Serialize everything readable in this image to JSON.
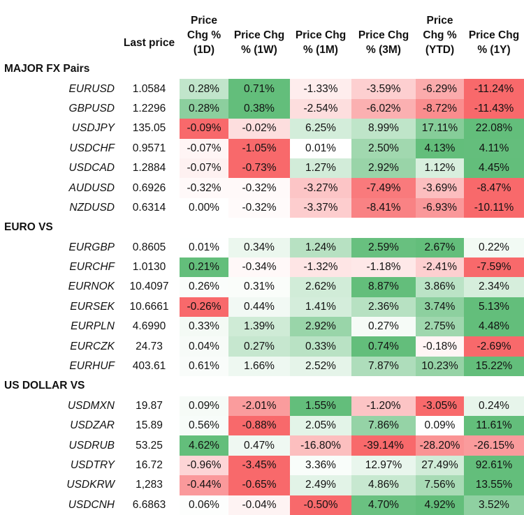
{
  "header": {
    "last_price": "Last price",
    "chg_1d": "Price Chg % (1D)",
    "chg_1w": "Price Chg % (1W)",
    "chg_1m": "Price Chg % (1M)",
    "chg_3m": "Price Chg % (3M)",
    "chg_ytd": "Price Chg % (YTD)",
    "chg_1y": "Price Chg % (1Y)"
  },
  "colors": {
    "positive": "#63be7b",
    "negative": "#f8696b",
    "neutral": "#ffffff"
  },
  "chart_data": {
    "type": "table",
    "columns": [
      "Last price",
      "Price Chg % (1D)",
      "Price Chg % (1W)",
      "Price Chg % (1M)",
      "Price Chg % (3M)",
      "Price Chg % (YTD)",
      "Price Chg % (1Y)"
    ],
    "sections": [
      {
        "name": "MAJOR FX Pairs",
        "rows": [
          {
            "pair": "EURUSD",
            "last": "1.0584",
            "changes": [
              "0.28%",
              "0.71%",
              "-1.33%",
              "-3.59%",
              "-6.29%",
              "-11.24%"
            ]
          },
          {
            "pair": "GBPUSD",
            "last": "1.2296",
            "changes": [
              "0.28%",
              "0.38%",
              "-2.54%",
              "-6.02%",
              "-8.72%",
              "-11.43%"
            ]
          },
          {
            "pair": "USDJPY",
            "last": "135.05",
            "changes": [
              "-0.09%",
              "-0.02%",
              "6.25%",
              "8.99%",
              "17.11%",
              "22.08%"
            ]
          },
          {
            "pair": "USDCHF",
            "last": "0.9571",
            "changes": [
              "-0.07%",
              "-1.05%",
              "0.01%",
              "2.50%",
              "4.13%",
              "4.11%"
            ]
          },
          {
            "pair": "USDCAD",
            "last": "1.2884",
            "changes": [
              "-0.07%",
              "-0.73%",
              "1.27%",
              "2.92%",
              "1.12%",
              "4.45%"
            ]
          },
          {
            "pair": "AUDUSD",
            "last": "0.6926",
            "changes": [
              "-0.32%",
              "-0.32%",
              "-3.27%",
              "-7.49%",
              "-3.69%",
              "-8.47%"
            ]
          },
          {
            "pair": "NZDUSD",
            "last": "0.6314",
            "changes": [
              "0.00%",
              "-0.32%",
              "-3.37%",
              "-8.41%",
              "-6.93%",
              "-10.11%"
            ]
          }
        ]
      },
      {
        "name": "EURO VS",
        "rows": [
          {
            "pair": "EURGBP",
            "last": "0.8605",
            "changes": [
              "0.01%",
              "0.34%",
              "1.24%",
              "2.59%",
              "2.67%",
              "0.22%"
            ]
          },
          {
            "pair": "EURCHF",
            "last": "1.0130",
            "changes": [
              "0.21%",
              "-0.34%",
              "-1.32%",
              "-1.18%",
              "-2.41%",
              "-7.59%"
            ]
          },
          {
            "pair": "EURNOK",
            "last": "10.4097",
            "changes": [
              "0.26%",
              "0.31%",
              "2.62%",
              "8.87%",
              "3.86%",
              "2.34%"
            ]
          },
          {
            "pair": "EURSEK",
            "last": "10.6661",
            "changes": [
              "-0.26%",
              "0.44%",
              "1.41%",
              "2.36%",
              "3.74%",
              "5.13%"
            ]
          },
          {
            "pair": "EURPLN",
            "last": "4.6990",
            "changes": [
              "0.33%",
              "1.39%",
              "2.92%",
              "0.27%",
              "2.75%",
              "4.48%"
            ]
          },
          {
            "pair": "EURCZK",
            "last": "24.73",
            "changes": [
              "0.04%",
              "0.27%",
              "0.33%",
              "0.74%",
              "-0.18%",
              "-2.69%"
            ]
          },
          {
            "pair": "EURHUF",
            "last": "403.61",
            "changes": [
              "0.61%",
              "1.66%",
              "2.52%",
              "7.87%",
              "10.23%",
              "15.22%"
            ]
          }
        ]
      },
      {
        "name": "US DOLLAR VS",
        "rows": [
          {
            "pair": "USDMXN",
            "last": "19.87",
            "changes": [
              "0.09%",
              "-2.01%",
              "1.55%",
              "-1.20%",
              "-3.05%",
              "0.24%"
            ]
          },
          {
            "pair": "USDZAR",
            "last": "15.89",
            "changes": [
              "0.56%",
              "-0.88%",
              "2.05%",
              "7.86%",
              "0.09%",
              "11.61%"
            ]
          },
          {
            "pair": "USDRUB",
            "last": "53.25",
            "changes": [
              "4.62%",
              "0.47%",
              "-16.80%",
              "-39.14%",
              "-28.20%",
              "-26.15%"
            ]
          },
          {
            "pair": "USDTRY",
            "last": "16.72",
            "changes": [
              "-0.96%",
              "-3.45%",
              "3.36%",
              "12.97%",
              "27.49%",
              "92.61%"
            ]
          },
          {
            "pair": "USDKRW",
            "last": "1,283",
            "changes": [
              "-0.44%",
              "-0.65%",
              "2.49%",
              "4.86%",
              "7.56%",
              "13.55%"
            ]
          },
          {
            "pair": "USDCNH",
            "last": "6.6863",
            "changes": [
              "0.06%",
              "-0.04%",
              "-0.50%",
              "4.70%",
              "4.92%",
              "3.52%"
            ]
          }
        ]
      }
    ]
  }
}
